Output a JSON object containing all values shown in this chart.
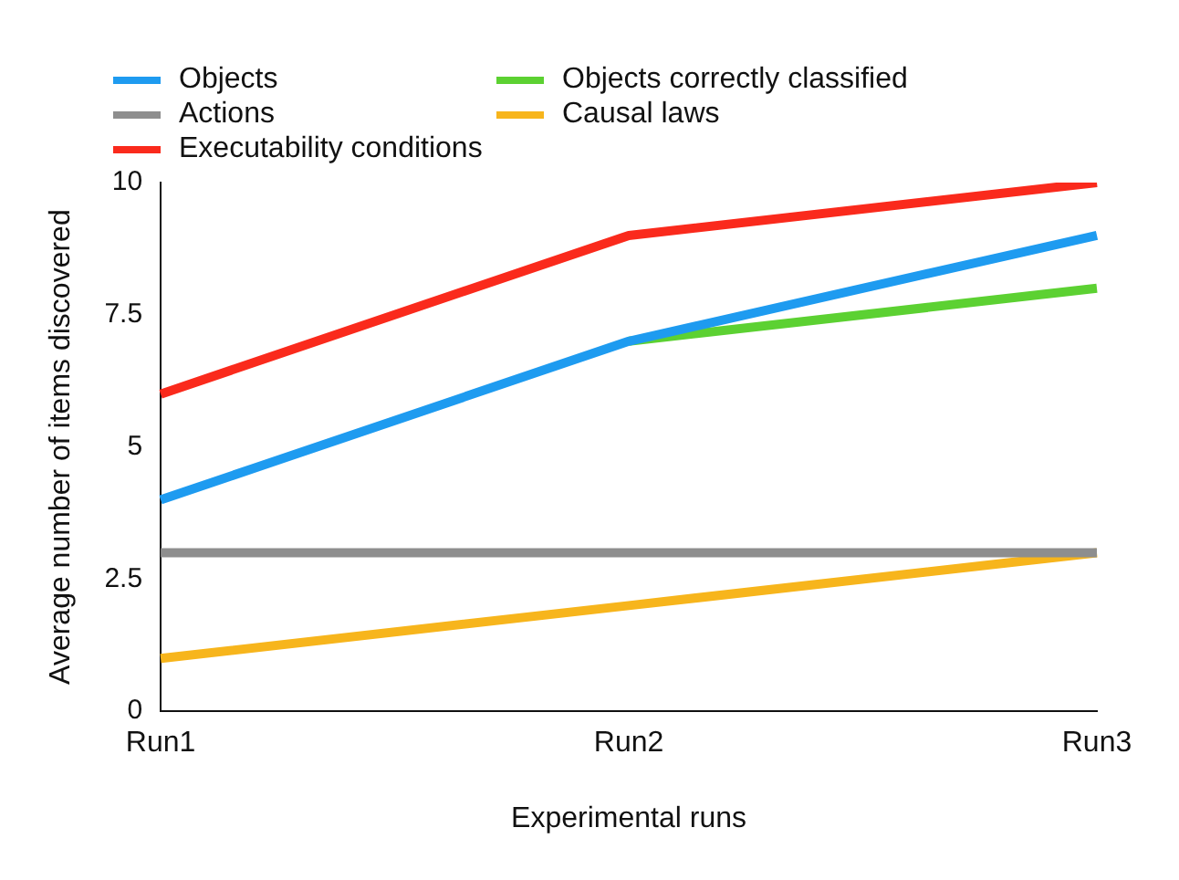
{
  "chart_data": {
    "type": "line",
    "xlabel": "Experimental runs",
    "ylabel": "Average number of items discovered",
    "categories": [
      "Run1",
      "Run2",
      "Run3"
    ],
    "series": [
      {
        "name": "Objects",
        "color": "#1e9bf0",
        "values": [
          4,
          7,
          9
        ]
      },
      {
        "name": "Actions",
        "color": "#8e8e8e",
        "values": [
          3,
          3,
          3
        ]
      },
      {
        "name": "Executability conditions",
        "color": "#fa2a1c",
        "values": [
          6,
          9,
          10
        ]
      },
      {
        "name": "Objects correctly classified",
        "color": "#5cd132",
        "values": [
          null,
          7,
          8
        ]
      },
      {
        "name": "Causal laws",
        "color": "#f7b51c",
        "values": [
          1,
          2,
          3
        ]
      }
    ],
    "ylim": [
      0,
      10
    ],
    "yticks": [
      0,
      2.5,
      5,
      7.5,
      10
    ],
    "grid": false,
    "legend": "top left",
    "marker": "none",
    "line_style": "solid"
  }
}
